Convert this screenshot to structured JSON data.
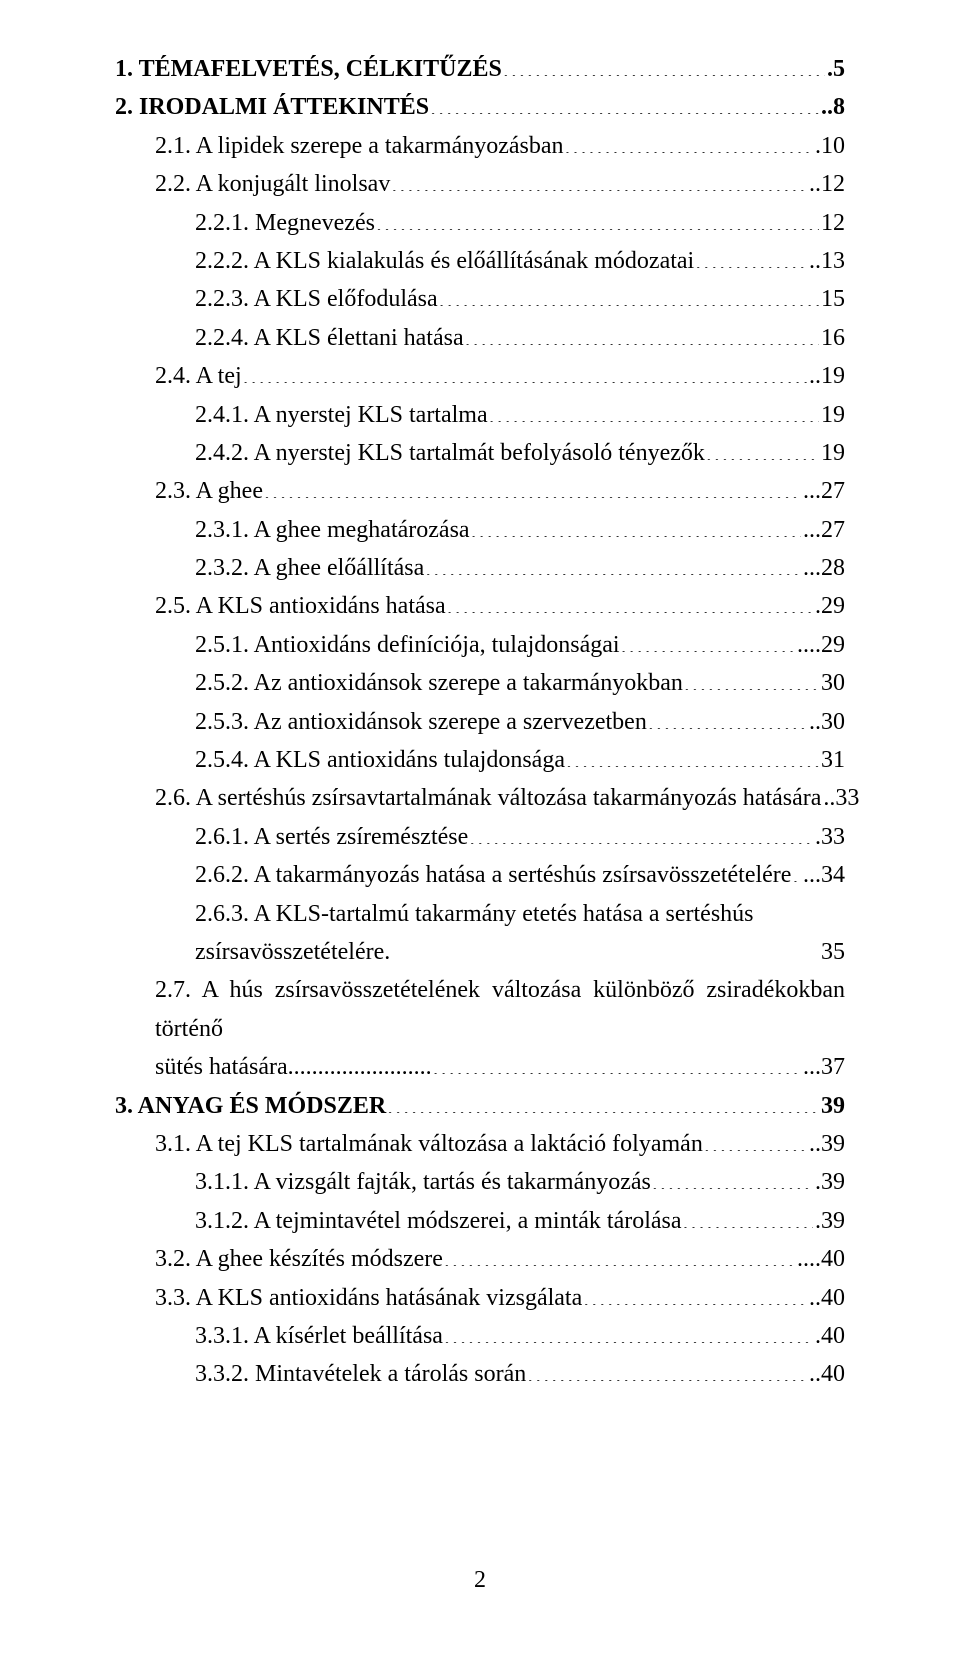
{
  "entries": [
    {
      "level": 0,
      "bold": true,
      "label": "1. TÉMAFELVETÉS, CÉLKITŰZÉS",
      "page": ".5"
    },
    {
      "level": 0,
      "bold": true,
      "label": "2. IRODALMI ÁTTEKINTÉS",
      "page": "..8"
    },
    {
      "level": 1,
      "bold": false,
      "label": "2.1. A lipidek szerepe a takarmányozásban",
      "page": ".10"
    },
    {
      "level": 1,
      "bold": false,
      "label": "2.2. A konjugált linolsav",
      "page": "..12"
    },
    {
      "level": 2,
      "bold": false,
      "label": "2.2.1. Megnevezés",
      "page": "12"
    },
    {
      "level": 2,
      "bold": false,
      "label": "2.2.2. A KLS kialakulás és előállításának módozatai",
      "page": "..13"
    },
    {
      "level": 2,
      "bold": false,
      "label": "2.2.3. A KLS előfodulása",
      "page": "15"
    },
    {
      "level": 2,
      "bold": false,
      "label": "2.2.4. A KLS élettani hatása",
      "page": "16"
    },
    {
      "level": 1,
      "bold": false,
      "label": "2.4. A tej",
      "page": "..19"
    },
    {
      "level": 2,
      "bold": false,
      "label": "2.4.1. A nyerstej KLS tartalma",
      "page": "19"
    },
    {
      "level": 2,
      "bold": false,
      "label": "2.4.2. A nyerstej KLS tartalmát befolyásoló tényezők",
      "page": "19"
    },
    {
      "level": 1,
      "bold": false,
      "label": "2.3. A ghee",
      "page": "...27"
    },
    {
      "level": 2,
      "bold": false,
      "label": "2.3.1. A ghee meghatározása",
      "page": "...27"
    },
    {
      "level": 2,
      "bold": false,
      "label": "2.3.2. A ghee előállítása",
      "page": "...28"
    },
    {
      "level": 1,
      "bold": false,
      "label": "2.5. A KLS antioxidáns hatása",
      "page": ".29"
    },
    {
      "level": 2,
      "bold": false,
      "label": "2.5.1. Antioxidáns definíciója, tulajdonságai",
      "page": "....29"
    },
    {
      "level": 2,
      "bold": false,
      "label": "2.5.2. Az antioxidánsok szerepe a takarmányokban",
      "page": "30"
    },
    {
      "level": 2,
      "bold": false,
      "label": "2.5.3. Az antioxidánsok szerepe a szervezetben",
      "page": "..30"
    },
    {
      "level": 2,
      "bold": false,
      "label": "2.5.4. A KLS antioxidáns tulajdonsága",
      "page": "31"
    },
    {
      "level": 1,
      "bold": false,
      "label": "2.6. A sertéshús zsírsavtartalmának változása takarmányozás hatására",
      "page": "..33"
    },
    {
      "level": 2,
      "bold": false,
      "label": "2.6.1. A sertés zsíremésztése",
      "page": ".33"
    },
    {
      "level": 2,
      "bold": false,
      "label": "2.6.2. A takarmányozás hatása a sertéshús zsírsavösszetételére",
      "page": "...34"
    },
    {
      "level": 2,
      "bold": false,
      "label": "2.6.3. A KLS-tartalmú takarmány etetés hatása a sertéshús",
      "page": "",
      "noLeader": true
    },
    {
      "level": 2,
      "bold": false,
      "label": "zsírsavösszetételére.",
      "page": "35",
      "plainGap": true
    },
    {
      "level": 1,
      "bold": false,
      "label": "2.7. A hús zsírsavösszetételének változása különböző zsiradékokban történő",
      "page": "",
      "justify": true,
      "noLeader": true
    },
    {
      "level": 1,
      "bold": false,
      "label": "sütés hatására........................",
      "page": "...37"
    },
    {
      "level": 0,
      "bold": true,
      "label": "3. ANYAG ÉS MÓDSZER",
      "page": "39"
    },
    {
      "level": 1,
      "bold": false,
      "label": "3.1. A tej KLS tartalmának változása a laktáció folyamán",
      "page": "..39"
    },
    {
      "level": 2,
      "bold": false,
      "label": "3.1.1. A vizsgált fajták, tartás és takarmányozás",
      "page": ".39"
    },
    {
      "level": 2,
      "bold": false,
      "label": "3.1.2. A tejmintavétel módszerei, a minták tárolása",
      "page": ".39"
    },
    {
      "level": 1,
      "bold": false,
      "label": "3.2. A ghee készítés módszere",
      "page": "....40"
    },
    {
      "level": 1,
      "bold": false,
      "label": "3.3. A KLS antioxidáns hatásának vizsgálata",
      "page": "..40"
    },
    {
      "level": 2,
      "bold": false,
      "label": "3.3.1. A kísérlet beállítása",
      "page": ".40"
    },
    {
      "level": 2,
      "bold": false,
      "label": "3.3.2. Mintavételek a tárolás során",
      "page": "..40"
    }
  ],
  "footer_page": "2"
}
